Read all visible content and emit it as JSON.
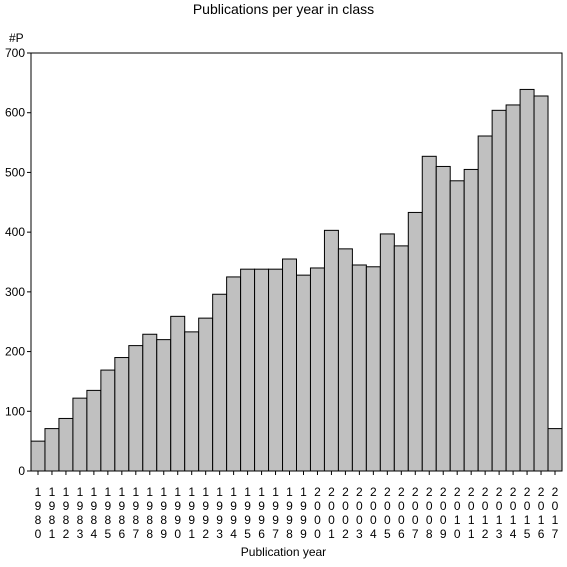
{
  "chart_data": {
    "type": "bar",
    "title": "Publications per year in class",
    "ylabel": "#P",
    "xlabel": "Publication year",
    "ylim": [
      0,
      700
    ],
    "yticks": [
      0,
      100,
      200,
      300,
      400,
      500,
      600,
      700
    ],
    "grid": false,
    "bar_color": "#c0c0c0",
    "categories": [
      "1980",
      "1981",
      "1982",
      "1983",
      "1984",
      "1985",
      "1986",
      "1987",
      "1988",
      "1989",
      "1990",
      "1991",
      "1992",
      "1993",
      "1994",
      "1995",
      "1996",
      "1997",
      "1998",
      "1999",
      "2000",
      "2001",
      "2002",
      "2003",
      "2004",
      "2005",
      "2006",
      "2007",
      "2008",
      "2009",
      "2010",
      "2011",
      "2012",
      "2013",
      "2014",
      "2015",
      "2016",
      "2017"
    ],
    "values": [
      50,
      71,
      88,
      122,
      135,
      169,
      190,
      210,
      229,
      220,
      259,
      233,
      256,
      296,
      325,
      338,
      338,
      338,
      355,
      328,
      340,
      403,
      372,
      345,
      342,
      397,
      377,
      433,
      527,
      510,
      486,
      505,
      561,
      604,
      613,
      639,
      628,
      71
    ]
  }
}
